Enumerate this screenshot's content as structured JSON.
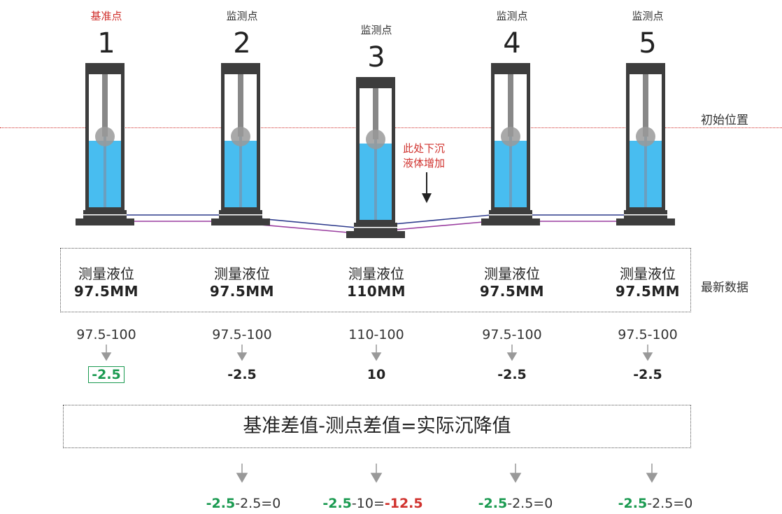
{
  "reference_line_label": "初始位置",
  "latest_data_label": "最新数据",
  "note": {
    "line1": "此处下沉",
    "line2": "液体增加"
  },
  "points": [
    {
      "role": "基准点",
      "number": "1",
      "measure_title": "测量液位",
      "measure_value": "97.5MM",
      "calc": "97.5-100",
      "diff": "-2.5",
      "level": 0.5
    },
    {
      "role": "监测点",
      "number": "2",
      "measure_title": "测量液位",
      "measure_value": "97.5MM",
      "calc": "97.5-100",
      "diff": "-2.5",
      "level": 0.5
    },
    {
      "role": "监测点",
      "number": "3",
      "measure_title": "测量液位",
      "measure_value": "110MM",
      "calc": "110-100",
      "diff": "10",
      "level": 0.58
    },
    {
      "role": "监测点",
      "number": "4",
      "measure_title": "测量液位",
      "measure_value": "97.5MM",
      "calc": "97.5-100",
      "diff": "-2.5",
      "level": 0.5
    },
    {
      "role": "监测点",
      "number": "5",
      "measure_title": "测量液位",
      "measure_value": "97.5MM",
      "calc": "97.5-100",
      "diff": "-2.5",
      "level": 0.5
    }
  ],
  "formula": "基准差值-测点差值=实际沉降值",
  "results": [
    {
      "base": "-2.5",
      "rest": "-2.5=0",
      "value": ""
    },
    {
      "base": "-2.5",
      "rest": "-10=",
      "value": "-12.5"
    },
    {
      "base": "-2.5",
      "rest": "-2.5=0",
      "value": ""
    },
    {
      "base": "-2.5",
      "rest": "-2.5=0",
      "value": ""
    }
  ],
  "colors": {
    "liquid": "#48bdf0",
    "frame": "#3d3d3d",
    "accent_red": "#d0312d",
    "accent_green": "#1a9a50",
    "pipe_blue": "#2d3a8c",
    "pipe_purple": "#9b3fa0"
  }
}
